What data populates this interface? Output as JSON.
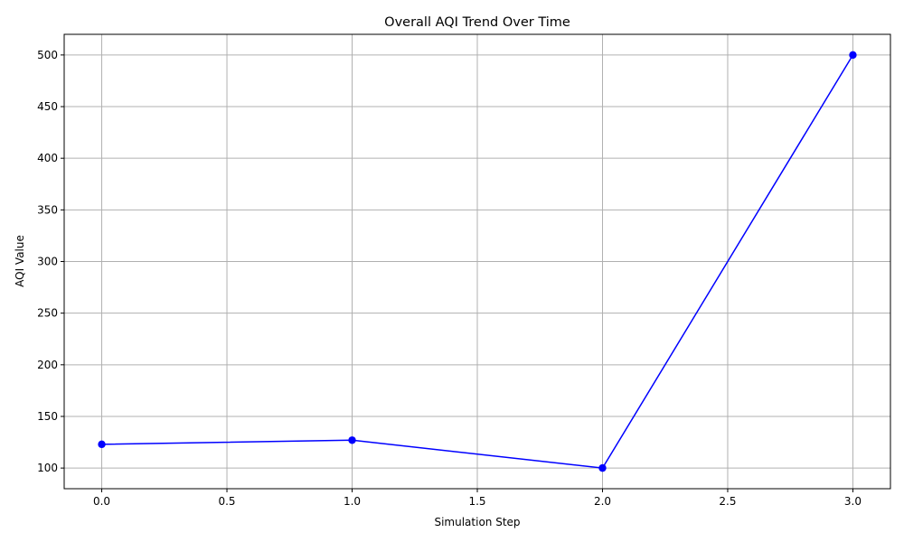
{
  "chart_data": {
    "type": "line",
    "title": "Overall AQI Trend Over Time",
    "xlabel": "Simulation Step",
    "ylabel": "AQI Value",
    "x": [
      0,
      1,
      2,
      3
    ],
    "series": [
      {
        "values": [
          123,
          127,
          100,
          500
        ],
        "color": "#0000ff",
        "marker": "circle"
      }
    ],
    "xlim": [
      -0.15,
      3.15
    ],
    "ylim": [
      80,
      520
    ],
    "xticks": [
      0.0,
      0.5,
      1.0,
      1.5,
      2.0,
      2.5,
      3.0
    ],
    "xtick_labels": [
      "0.0",
      "0.5",
      "1.0",
      "1.5",
      "2.0",
      "2.5",
      "3.0"
    ],
    "yticks": [
      100,
      150,
      200,
      250,
      300,
      350,
      400,
      450,
      500
    ],
    "ytick_labels": [
      "100",
      "150",
      "200",
      "250",
      "300",
      "350",
      "400",
      "450",
      "500"
    ],
    "grid": true,
    "grid_color": "#b0b0b0",
    "legend": "none"
  }
}
